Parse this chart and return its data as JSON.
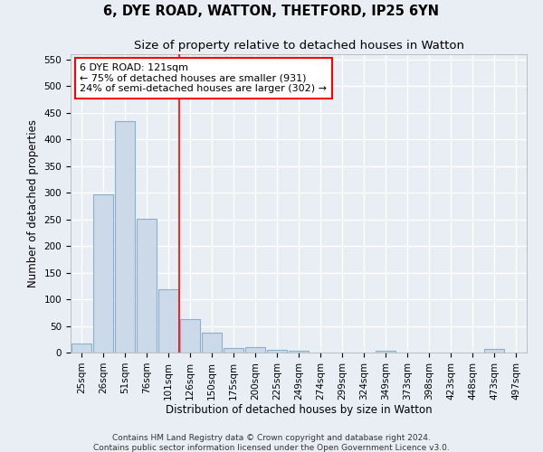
{
  "title_line1": "6, DYE ROAD, WATTON, THETFORD, IP25 6YN",
  "title_line2": "Size of property relative to detached houses in Watton",
  "xlabel": "Distribution of detached houses by size in Watton",
  "ylabel": "Number of detached properties",
  "bar_color": "#ccd9e8",
  "bar_edgecolor": "#8ab0cc",
  "bar_linewidth": 0.8,
  "categories": [
    "25sqm",
    "26sqm",
    "51sqm",
    "76sqm",
    "101sqm",
    "126sqm",
    "150sqm",
    "175sqm",
    "200sqm",
    "225sqm",
    "249sqm",
    "274sqm",
    "299sqm",
    "324sqm",
    "349sqm",
    "373sqm",
    "398sqm",
    "423sqm",
    "448sqm",
    "473sqm",
    "497sqm"
  ],
  "values": [
    17,
    297,
    435,
    252,
    118,
    63,
    37,
    9,
    11,
    5,
    4,
    0,
    0,
    0,
    4,
    0,
    0,
    0,
    0,
    6,
    0
  ],
  "ylim": [
    0,
    560
  ],
  "yticks": [
    0,
    50,
    100,
    150,
    200,
    250,
    300,
    350,
    400,
    450,
    500,
    550
  ],
  "vline_x_index": 4.48,
  "annotation_text": "6 DYE ROAD: 121sqm\n← 75% of detached houses are smaller (931)\n24% of semi-detached houses are larger (302) →",
  "annotation_box_color": "white",
  "annotation_border_color": "red",
  "vline_color": "red",
  "vline_linewidth": 1.2,
  "footnote": "Contains HM Land Registry data © Crown copyright and database right 2024.\nContains public sector information licensed under the Open Government Licence v3.0.",
  "title_fontsize": 10.5,
  "subtitle_fontsize": 9.5,
  "axis_label_fontsize": 8.5,
  "tick_fontsize": 7.5,
  "annotation_fontsize": 8,
  "footnote_fontsize": 6.5,
  "background_color": "#e8eef4",
  "plot_background_color": "#e8eef4",
  "grid_color": "#ffffff",
  "grid_linewidth": 1.0
}
